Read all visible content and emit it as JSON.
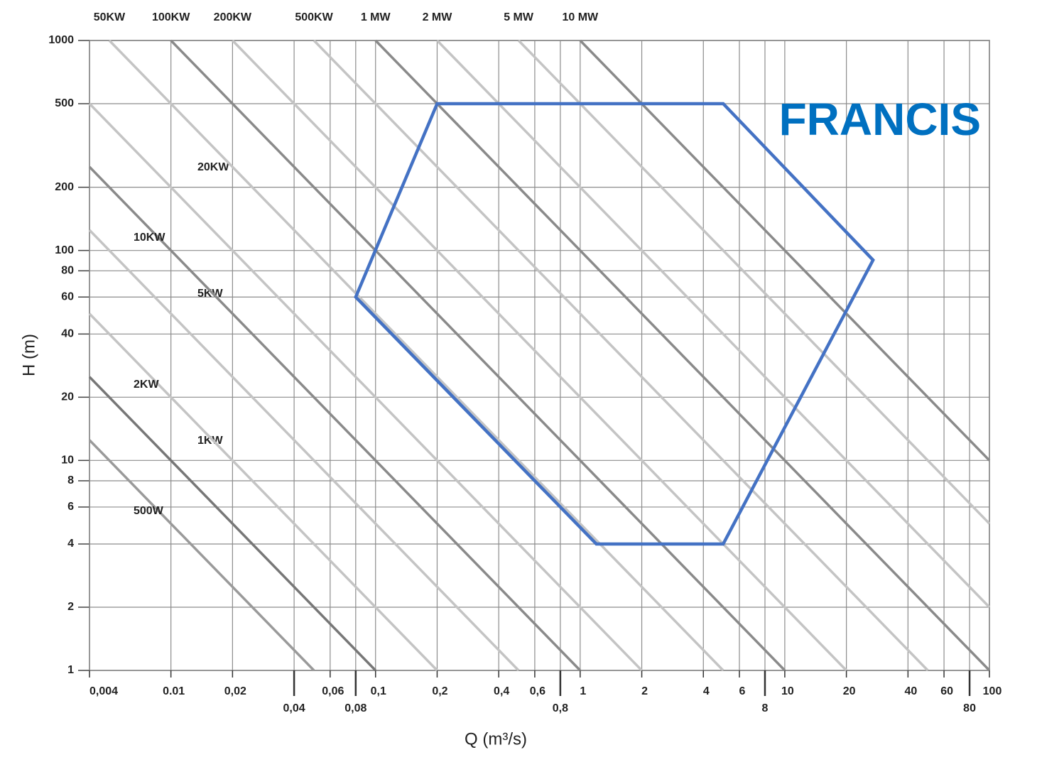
{
  "chart_data": {
    "type": "line",
    "x_label": "Q (m³/s)",
    "y_label": "H (m)",
    "x_log": true,
    "y_log": true,
    "grid": true,
    "xlim": [
      0.004,
      100
    ],
    "ylim": [
      1,
      1000
    ],
    "xticks": [
      {
        "value": 0.004,
        "label": "0,004"
      },
      {
        "value": 0.01,
        "label": "0.01"
      },
      {
        "value": 0.02,
        "label": "0,02"
      },
      {
        "value": 0.04,
        "label": "0,04"
      },
      {
        "value": 0.06,
        "label": "0,06"
      },
      {
        "value": 0.08,
        "label": "0,08"
      },
      {
        "value": 0.1,
        "label": "0,1"
      },
      {
        "value": 0.2,
        "label": "0,2"
      },
      {
        "value": 0.4,
        "label": "0,4"
      },
      {
        "value": 0.6,
        "label": "0,6"
      },
      {
        "value": 0.8,
        "label": "0,8"
      },
      1,
      2,
      4,
      6,
      8,
      10,
      20,
      40,
      60,
      80,
      100
    ],
    "yticks": [
      1,
      2,
      4,
      6,
      8,
      10,
      20,
      40,
      60,
      80,
      100,
      200,
      500,
      1000
    ],
    "series": [
      {
        "name": "500W",
        "color": "#9a9a9a",
        "x": [
          0.004,
          0.05
        ],
        "values": [
          12.5,
          1
        ]
      },
      {
        "name": "1KW",
        "color": "#777777",
        "x": [
          0.004,
          0.1
        ],
        "values": [
          25,
          1
        ]
      },
      {
        "name": "2KW",
        "color": "#c4c4c4",
        "x": [
          0.004,
          0.2
        ],
        "values": [
          50,
          1
        ]
      },
      {
        "name": "5KW",
        "color": "#c4c4c4",
        "x": [
          0.004,
          0.5
        ],
        "values": [
          125,
          1
        ]
      },
      {
        "name": "10KW",
        "color": "#8a8a8a",
        "x": [
          0.004,
          1
        ],
        "values": [
          250,
          1
        ]
      },
      {
        "name": "20KW",
        "color": "#c4c4c4",
        "x": [
          0.004,
          2
        ],
        "values": [
          500,
          1
        ]
      },
      {
        "name": "50KW",
        "color": "#c4c4c4",
        "x": [
          0.005,
          5
        ],
        "values": [
          1000,
          1
        ]
      },
      {
        "name": "100KW",
        "color": "#8a8a8a",
        "x": [
          0.01,
          10
        ],
        "values": [
          1000,
          1
        ]
      },
      {
        "name": "200KW",
        "color": "#c4c4c4",
        "x": [
          0.02,
          20
        ],
        "values": [
          1000,
          1
        ]
      },
      {
        "name": "500KW",
        "color": "#c4c4c4",
        "x": [
          0.05,
          50
        ],
        "values": [
          1000,
          1
        ]
      },
      {
        "name": "1 MW",
        "color": "#8a8a8a",
        "x": [
          0.1,
          100
        ],
        "values": [
          1000,
          1
        ]
      },
      {
        "name": "2 MW",
        "color": "#c4c4c4",
        "x": [
          0.2,
          100
        ],
        "values": [
          1000,
          2
        ]
      },
      {
        "name": "5 MW",
        "color": "#c4c4c4",
        "x": [
          0.5,
          100
        ],
        "values": [
          1000,
          5
        ]
      },
      {
        "name": "10 MW",
        "color": "#8a8a8a",
        "x": [
          1,
          100
        ],
        "values": [
          1000,
          10
        ]
      }
    ],
    "regions": [
      {
        "name": "FRANCIS",
        "color": "#4472c4",
        "label_color": "#0070c0",
        "x": [
          0.2,
          5,
          27,
          5,
          1.2,
          0.08
        ],
        "values": [
          500,
          500,
          90,
          4,
          4,
          60
        ]
      }
    ]
  }
}
